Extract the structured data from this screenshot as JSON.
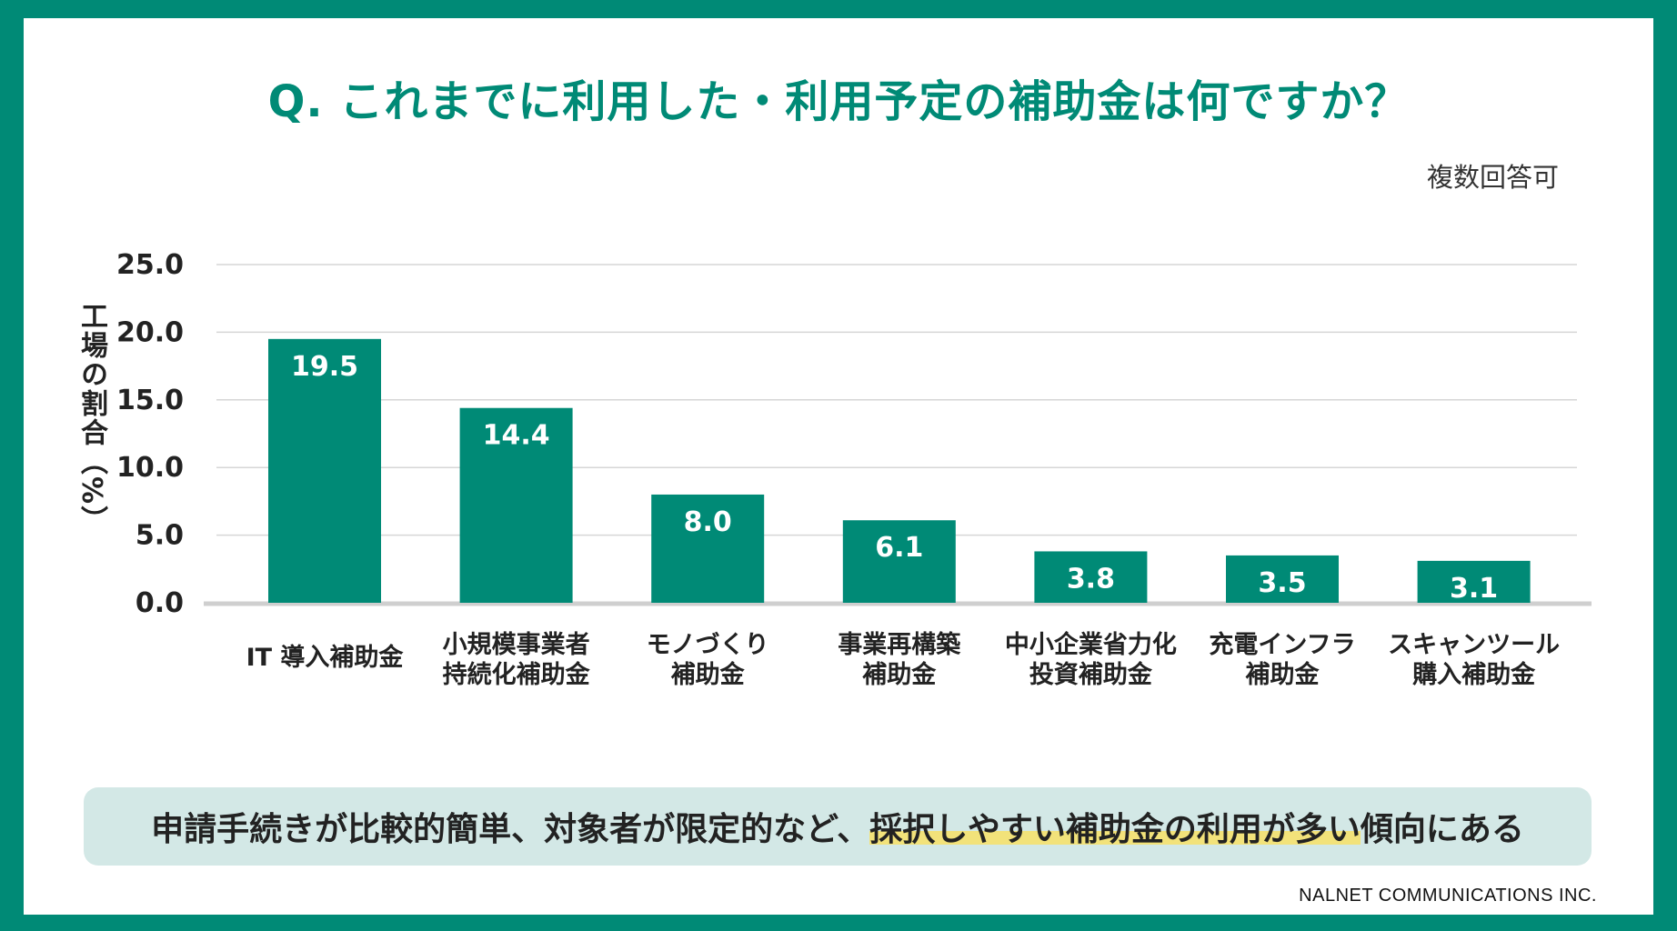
{
  "title": "Q. これまでに利用した・利用予定の補助金は何ですか？",
  "note": "複数回答可",
  "summary": {
    "before": "申請手続きが比較的簡単、対象者が限定的など、",
    "highlight": "採択しやすい補助金の利用が多い",
    "after": "傾向にある"
  },
  "footer": "NALNET COMMUNICATIONS INC.",
  "colors": {
    "accent": "#008a76",
    "bar": "#008a76",
    "highlight": "#f2e27a",
    "summary_bg": "#d3e8e6"
  },
  "chart_data": {
    "type": "bar",
    "title": "Q. これまでに利用した・利用予定の補助金は何ですか？",
    "ylabel": "工場の割合（%）",
    "xlabel": "",
    "ylim": [
      0,
      25
    ],
    "yticks": [
      "0.0",
      "5.0",
      "10.0",
      "15.0",
      "20.0",
      "25.0"
    ],
    "grid": true,
    "categories": [
      [
        "IT 導入補助金"
      ],
      [
        "小規模事業者",
        "持続化補助金"
      ],
      [
        "モノづくり",
        "補助金"
      ],
      [
        "事業再構築",
        "補助金"
      ],
      [
        "中小企業省力化",
        "投資補助金"
      ],
      [
        "充電インフラ",
        "補助金"
      ],
      [
        "スキャンツール",
        "購入補助金"
      ]
    ],
    "values": [
      19.5,
      14.4,
      8.0,
      6.1,
      3.8,
      3.5,
      3.1
    ],
    "data_labels": [
      "19.5",
      "14.4",
      "8.0",
      "6.1",
      "3.8",
      "3.5",
      "3.1"
    ]
  }
}
